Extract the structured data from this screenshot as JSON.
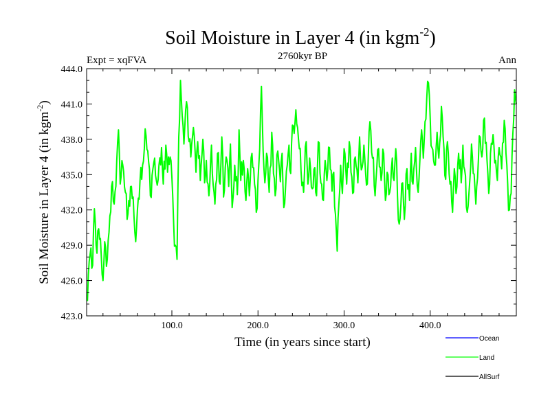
{
  "chart_data": {
    "type": "line",
    "title_main": "Soil Moisture in Layer 4 (in kgm",
    "title_exp": "-2",
    "title_close": ")",
    "subtitle_left": "Expt = xqFVA",
    "subtitle_center": "2760kyr BP",
    "subtitle_right": "Ann",
    "xlabel": "Time (in years since start)",
    "ylabel_main": "Soil Moisture in Layer 4 (in kgm",
    "ylabel_exp": "-2",
    "ylabel_close": ")",
    "xlim": [
      1,
      500
    ],
    "ylim": [
      423.0,
      444.0
    ],
    "x_ticks": [
      100,
      200,
      300,
      400
    ],
    "x_tick_labels": [
      "100.0",
      "200.0",
      "300.0",
      "400.0"
    ],
    "y_ticks": [
      423,
      426,
      429,
      432,
      435,
      438,
      441,
      444
    ],
    "y_tick_labels": [
      "423.0",
      "426.0",
      "429.0",
      "432.0",
      "435.0",
      "438.0",
      "441.0",
      "444.0"
    ],
    "legend": [
      {
        "name": "Ocean",
        "color": "#0000ff"
      },
      {
        "name": "Land",
        "color": "#00ff00"
      },
      {
        "name": "AllSurf",
        "color": "#000000"
      }
    ],
    "series": [
      {
        "name": "Land",
        "color": "#00ff00",
        "keypoints": [
          [
            1,
            424.3
          ],
          [
            3,
            426.5
          ],
          [
            5,
            428.2
          ],
          [
            8,
            427.3
          ],
          [
            10,
            432.1
          ],
          [
            12,
            429.0
          ],
          [
            15,
            430.4
          ],
          [
            18,
            428.1
          ],
          [
            20,
            426.0
          ],
          [
            22,
            429.3
          ],
          [
            25,
            427.8
          ],
          [
            28,
            431.5
          ],
          [
            30,
            434.0
          ],
          [
            33,
            432.5
          ],
          [
            36,
            436.2
          ],
          [
            38,
            438.8
          ],
          [
            40,
            434.2
          ],
          [
            43,
            435.8
          ],
          [
            46,
            433.5
          ],
          [
            48,
            431.2
          ],
          [
            50,
            432.8
          ],
          [
            53,
            434.0
          ],
          [
            55,
            433.1
          ],
          [
            58,
            429.3
          ],
          [
            60,
            432.0
          ],
          [
            63,
            434.5
          ],
          [
            66,
            435.8
          ],
          [
            68,
            437.2
          ],
          [
            70,
            438.3
          ],
          [
            73,
            436.1
          ],
          [
            75,
            433.2
          ],
          [
            78,
            435.5
          ],
          [
            80,
            436.4
          ],
          [
            83,
            434.1
          ],
          [
            85,
            435.8
          ],
          [
            88,
            437.3
          ],
          [
            90,
            434.2
          ],
          [
            93,
            437.5
          ],
          [
            95,
            435.2
          ],
          [
            98,
            436.5
          ],
          [
            100,
            434.8
          ],
          [
            102,
            431.0
          ],
          [
            104,
            429.0
          ],
          [
            106,
            427.8
          ],
          [
            108,
            438.2
          ],
          [
            110,
            443.0
          ],
          [
            112,
            440.0
          ],
          [
            114,
            437.6
          ],
          [
            117,
            441.2
          ],
          [
            120,
            437.8
          ],
          [
            122,
            436.5
          ],
          [
            125,
            439.0
          ],
          [
            128,
            435.2
          ],
          [
            130,
            437.8
          ],
          [
            133,
            434.5
          ],
          [
            136,
            438.0
          ],
          [
            138,
            434.3
          ],
          [
            140,
            436.2
          ],
          [
            143,
            433.2
          ],
          [
            146,
            437.5
          ],
          [
            148,
            434.1
          ],
          [
            150,
            432.5
          ],
          [
            153,
            436.8
          ],
          [
            156,
            434.2
          ],
          [
            158,
            438.2
          ],
          [
            160,
            433.1
          ],
          [
            163,
            436.5
          ],
          [
            166,
            434.0
          ],
          [
            168,
            437.6
          ],
          [
            170,
            432.2
          ],
          [
            173,
            435.8
          ],
          [
            176,
            433.3
          ],
          [
            178,
            438.8
          ],
          [
            180,
            434.5
          ],
          [
            183,
            436.2
          ],
          [
            186,
            432.8
          ],
          [
            188,
            435.5
          ],
          [
            190,
            433.2
          ],
          [
            193,
            436.8
          ],
          [
            196,
            434.2
          ],
          [
            198,
            431.8
          ],
          [
            200,
            434.5
          ],
          [
            202,
            437.2
          ],
          [
            204,
            442.5
          ],
          [
            206,
            437.0
          ],
          [
            208,
            434.3
          ],
          [
            210,
            436.8
          ],
          [
            213,
            433.5
          ],
          [
            216,
            438.6
          ],
          [
            218,
            435.1
          ],
          [
            220,
            433.2
          ],
          [
            223,
            437.0
          ],
          [
            226,
            434.4
          ],
          [
            228,
            436.8
          ],
          [
            230,
            432.2
          ],
          [
            233,
            435.3
          ],
          [
            236,
            437.5
          ],
          [
            238,
            435.1
          ],
          [
            240,
            439.2
          ],
          [
            242,
            438.5
          ],
          [
            244,
            440.5
          ],
          [
            246,
            439.0
          ],
          [
            248,
            437.2
          ],
          [
            250,
            435.3
          ],
          [
            253,
            433.5
          ],
          [
            256,
            437.8
          ],
          [
            258,
            434.2
          ],
          [
            260,
            436.4
          ],
          [
            263,
            433.8
          ],
          [
            266,
            435.6
          ],
          [
            268,
            433.2
          ],
          [
            270,
            437.8
          ],
          [
            273,
            434.3
          ],
          [
            276,
            432.8
          ],
          [
            278,
            436.2
          ],
          [
            280,
            434.5
          ],
          [
            283,
            437.3
          ],
          [
            286,
            433.6
          ],
          [
            288,
            435.2
          ],
          [
            290,
            431.6
          ],
          [
            292,
            428.5
          ],
          [
            294,
            432.6
          ],
          [
            296,
            435.8
          ],
          [
            298,
            433.4
          ],
          [
            300,
            437.2
          ],
          [
            303,
            434.2
          ],
          [
            306,
            437.8
          ],
          [
            308,
            435.2
          ],
          [
            310,
            433.4
          ],
          [
            313,
            436.5
          ],
          [
            316,
            434.3
          ],
          [
            318,
            438.2
          ],
          [
            320,
            435.4
          ],
          [
            323,
            437.5
          ],
          [
            326,
            434.1
          ],
          [
            328,
            436.3
          ],
          [
            330,
            439.5
          ],
          [
            333,
            436.4
          ],
          [
            336,
            433.2
          ],
          [
            338,
            435.6
          ],
          [
            340,
            437.2
          ],
          [
            343,
            434.5
          ],
          [
            346,
            436.8
          ],
          [
            348,
            432.8
          ],
          [
            350,
            435.2
          ],
          [
            353,
            433.5
          ],
          [
            356,
            436.4
          ],
          [
            358,
            434.5
          ],
          [
            360,
            437.2
          ],
          [
            362,
            433.2
          ],
          [
            364,
            430.8
          ],
          [
            366,
            432.5
          ],
          [
            368,
            434.3
          ],
          [
            370,
            431.2
          ],
          [
            373,
            435.5
          ],
          [
            376,
            432.8
          ],
          [
            378,
            436.8
          ],
          [
            380,
            434.2
          ],
          [
            383,
            437.3
          ],
          [
            386,
            433.5
          ],
          [
            388,
            436.2
          ],
          [
            390,
            438.8
          ],
          [
            392,
            436.4
          ],
          [
            394,
            439.5
          ],
          [
            396,
            441.5
          ],
          [
            398,
            442.8
          ],
          [
            400,
            439.8
          ],
          [
            402,
            437.3
          ],
          [
            405,
            435.8
          ],
          [
            408,
            438.6
          ],
          [
            410,
            436.4
          ],
          [
            413,
            440.8
          ],
          [
            416,
            437.2
          ],
          [
            418,
            434.6
          ],
          [
            420,
            437.8
          ],
          [
            423,
            434.2
          ],
          [
            426,
            431.8
          ],
          [
            428,
            435.5
          ],
          [
            430,
            433.4
          ],
          [
            433,
            436.8
          ],
          [
            436,
            434.3
          ],
          [
            438,
            437.5
          ],
          [
            440,
            435.4
          ],
          [
            443,
            431.8
          ],
          [
            446,
            434.5
          ],
          [
            448,
            437.6
          ],
          [
            450,
            435.1
          ],
          [
            453,
            432.5
          ],
          [
            456,
            436.3
          ],
          [
            458,
            438.2
          ],
          [
            460,
            436.5
          ],
          [
            463,
            439.8
          ],
          [
            466,
            436.2
          ],
          [
            468,
            433.4
          ],
          [
            470,
            436.8
          ],
          [
            473,
            438.4
          ],
          [
            476,
            436.2
          ],
          [
            478,
            434.5
          ],
          [
            480,
            437.3
          ],
          [
            483,
            435.5
          ],
          [
            486,
            439.6
          ],
          [
            488,
            436.8
          ],
          [
            490,
            434.2
          ],
          [
            492,
            432.0
          ],
          [
            494,
            433.4
          ],
          [
            496,
            438.5
          ],
          [
            498,
            442.2
          ],
          [
            500,
            441.0
          ]
        ]
      }
    ]
  }
}
